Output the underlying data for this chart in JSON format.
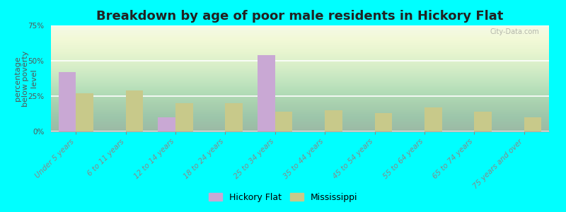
{
  "title": "Breakdown by age of poor male residents in Hickory Flat",
  "ylabel": "percentage\nbelow poverty\nlevel",
  "categories": [
    "Under 5 years",
    "6 to 11 years",
    "12 to 14 years",
    "18 to 24 years",
    "25 to 34 years",
    "35 to 44 years",
    "45 to 54 years",
    "55 to 64 years",
    "65 to 74 years",
    "75 years and over"
  ],
  "hickory_flat": [
    42,
    0,
    10,
    0,
    54,
    0,
    0,
    0,
    0,
    0
  ],
  "mississippi": [
    27,
    29,
    20,
    20,
    14,
    15,
    13,
    17,
    14,
    10
  ],
  "hickory_color": "#c9a8d4",
  "mississippi_color": "#c8c98a",
  "outer_background": "#00ffff",
  "ylim": [
    0,
    75
  ],
  "yticks": [
    0,
    25,
    50,
    75
  ],
  "ytick_labels": [
    "0%",
    "25%",
    "50%",
    "75%"
  ],
  "bar_width": 0.35,
  "title_fontsize": 13,
  "axis_label_fontsize": 8,
  "tick_fontsize": 7.5,
  "legend_label_hickory": "Hickory Flat",
  "legend_label_ms": "Mississippi",
  "watermark": "City-Data.com"
}
